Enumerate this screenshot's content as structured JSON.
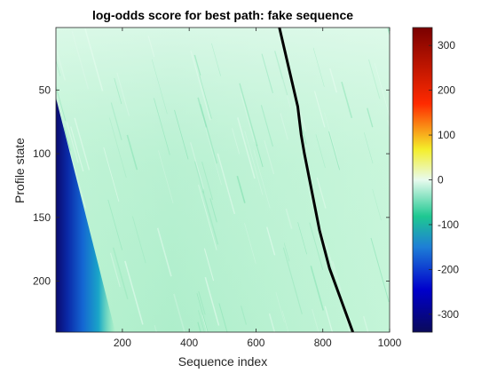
{
  "chart_data": {
    "type": "heatmap",
    "title": "log-odds score for best path: fake sequence",
    "xlabel": "Sequence index",
    "ylabel": "Profile state",
    "xlim": [
      1,
      1000
    ],
    "ylim": [
      1,
      240
    ],
    "y_reversed": true,
    "xticks": [
      200,
      400,
      600,
      800,
      1000
    ],
    "yticks": [
      50,
      100,
      150,
      200
    ],
    "colorbar": {
      "range": [
        -340,
        340
      ],
      "ticks": [
        -300,
        -200,
        -100,
        0,
        100,
        200,
        300
      ],
      "colormap": "jet-like with white at zero",
      "colors": [
        "#0a0a5a",
        "#0000cc",
        "#1e7fd6",
        "#1ec891",
        "#e8fbee",
        "#f4ee2a",
        "#ff2a00",
        "#7a0000"
      ]
    },
    "heatmap_description_values": {
      "background_score_approx": -60,
      "lower_left_min_score_approx": -300
    },
    "best_path": {
      "color": "#000000",
      "points": [
        {
          "x": 670,
          "y": 1
        },
        {
          "x": 725,
          "y": 63
        },
        {
          "x": 735,
          "y": 85
        },
        {
          "x": 745,
          "y": 100
        },
        {
          "x": 790,
          "y": 160
        },
        {
          "x": 820,
          "y": 190
        },
        {
          "x": 890,
          "y": 240
        }
      ]
    }
  }
}
